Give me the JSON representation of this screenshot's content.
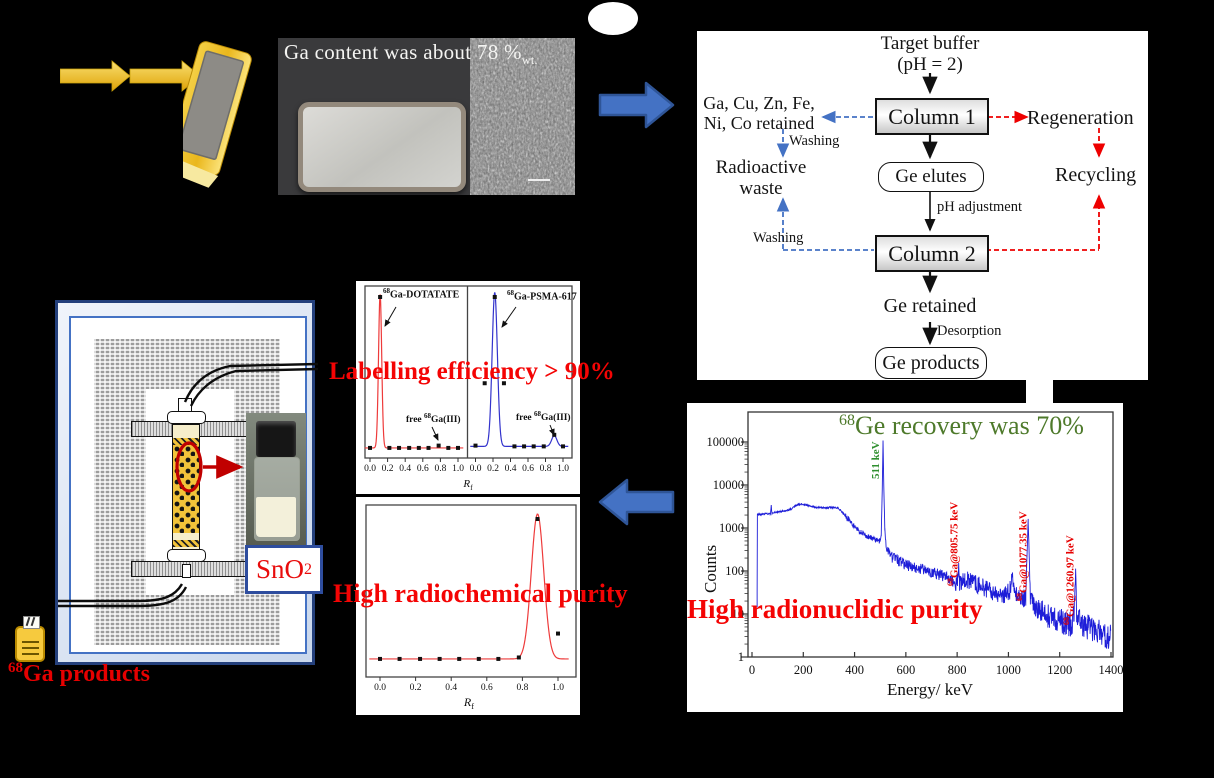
{
  "photo": {
    "caption": "Ga content was about 78 %",
    "caption_sub": "wt."
  },
  "flowchart": {
    "target_buffer_1": "Target buffer",
    "target_buffer_2": "(pH = 2)",
    "column1": "Column 1",
    "column2": "Column 2",
    "retained_1": "Ga, Cu, Zn, Fe,",
    "retained_2": "Ni, Co retained",
    "washing1": "Washing",
    "washing2": "Washing",
    "radioactive_waste_1": "Radioactive",
    "radioactive_waste_2": "waste",
    "regeneration": "Regeneration",
    "recycling": "Recycling",
    "ge_elutes": "Ge elutes",
    "ph_adjustment": "pH adjustment",
    "ge_retained": "Ge retained",
    "desorption": "Desorption",
    "ge_products": "Ge products"
  },
  "generator": {
    "sno2_main": "SnO",
    "sno2_sub": "2",
    "products_sup": "68",
    "products_text": "Ga products"
  },
  "overlays": {
    "labelling": "Labelling efficiency > 90%",
    "radiochemical": "High radiochemical purity",
    "radionuclidic": "High radionuclidic purity"
  },
  "colors": {
    "accent_blue": "#4472c4",
    "arrow_border_blue": "#2f5597",
    "flow_red": "#ee0000",
    "overlay_red": "#f40404",
    "title_green": "#4e7a2b",
    "peak_label_green": "#2f8f2f",
    "tlc_red": "#ee3b3b",
    "tlc_blue": "#3333cc",
    "spectrum_blue": "#1d1dd8",
    "gold": "#e8b62a",
    "generator_red": "#c00000"
  },
  "chart_data": [
    {
      "type": "line",
      "desc": "radio-TLC chromatograms of labelled tracers",
      "xlabel_main": "R",
      "xlabel_sub": "f",
      "x_ticks": [
        "0.0",
        "0.2",
        "0.4",
        "0.6",
        "0.8",
        "1.0"
      ],
      "xlim": [
        0.0,
        1.0
      ],
      "panels": [
        {
          "label_sup": "68",
          "label_text": "Ga-DOTATATE",
          "free_pre": "free ",
          "free_sup": "68",
          "free_text": "Ga(III)",
          "color": "#ee3b3b",
          "baseline": 0.02,
          "peaks": [
            {
              "center": 0.115,
              "sigma": 0.018,
              "height": 1.0
            }
          ],
          "free_peak_rf": 0.78,
          "markers": [
            [
              0.0,
              0.02
            ],
            [
              0.115,
              1.0
            ],
            [
              0.22,
              0.02
            ],
            [
              0.33,
              0.02
            ],
            [
              0.445,
              0.02
            ],
            [
              0.555,
              0.02
            ],
            [
              0.665,
              0.02
            ],
            [
              0.78,
              0.035
            ],
            [
              0.89,
              0.02
            ],
            [
              1.0,
              0.02
            ]
          ]
        },
        {
          "label_sup": "68",
          "label_text": "Ga-PSMA-617",
          "free_pre": "free ",
          "free_sup": "68",
          "free_text": "Ga(III)",
          "color": "#3333cc",
          "baseline": 0.03,
          "peaks": [
            {
              "center": 0.22,
              "sigma": 0.03,
              "height": 1.0
            },
            {
              "center": 0.9,
              "sigma": 0.03,
              "height": 0.07
            }
          ],
          "free_peak_rf": 0.9,
          "markers": [
            [
              0.0,
              0.035
            ],
            [
              0.105,
              0.44
            ],
            [
              0.22,
              1.0
            ],
            [
              0.325,
              0.44
            ],
            [
              0.445,
              0.03
            ],
            [
              0.555,
              0.03
            ],
            [
              0.665,
              0.03
            ],
            [
              0.78,
              0.03
            ],
            [
              0.9,
              0.105
            ],
            [
              1.0,
              0.03
            ]
          ]
        }
      ]
    },
    {
      "type": "line",
      "desc": "radio-TLC of final 68Ga product",
      "xlabel_main": "R",
      "xlabel_sub": "f",
      "x_ticks": [
        "0.0",
        "0.2",
        "0.4",
        "0.6",
        "0.8",
        "1.0"
      ],
      "xlim": [
        0.0,
        1.0
      ],
      "color": "#ee3b3b",
      "baseline": 0.035,
      "peaks": [
        {
          "center": 0.885,
          "sigma": 0.035,
          "height": 1.0
        }
      ],
      "markers": [
        [
          0.0,
          0.035
        ],
        [
          0.11,
          0.035
        ],
        [
          0.225,
          0.035
        ],
        [
          0.335,
          0.035
        ],
        [
          0.445,
          0.035
        ],
        [
          0.555,
          0.035
        ],
        [
          0.665,
          0.035
        ],
        [
          0.78,
          0.045
        ],
        [
          0.885,
          1.0
        ],
        [
          1.0,
          0.21
        ]
      ]
    },
    {
      "type": "line",
      "desc": "gamma-ray spectrum",
      "title_sup": "68",
      "title_text": "Ge recovery was 70%",
      "xlabel": "Energy/ keV",
      "ylabel": "Counts",
      "yscale": "log",
      "xlim": [
        0,
        1400
      ],
      "ylim": [
        1,
        500000
      ],
      "x_ticks": [
        0,
        200,
        400,
        600,
        800,
        1000,
        1200,
        1400
      ],
      "y_ticks": [
        1,
        10,
        100,
        1000,
        10000,
        100000
      ],
      "color": "#1d1dd8",
      "annotations": [
        {
          "sup": "",
          "text": "511 keV",
          "energy": 511,
          "base_counts": 14000,
          "color": "#2f8f2f"
        },
        {
          "sup": "68",
          "text": "Ga@805.75 keV",
          "energy": 805.75,
          "base_counts": 45,
          "color": "#e60000"
        },
        {
          "sup": "68",
          "text": "Ga@1077.35 keV",
          "energy": 1077.35,
          "base_counts": 20,
          "color": "#e60000"
        },
        {
          "sup": "68",
          "text": "Ga@1260.97 keV",
          "energy": 1260.97,
          "base_counts": 5.5,
          "color": "#e60000"
        }
      ],
      "points": [
        [
          20,
          22
        ],
        [
          21,
          2100
        ],
        [
          35,
          2050
        ],
        [
          55,
          2150
        ],
        [
          72,
          2100
        ],
        [
          75,
          3300
        ],
        [
          78,
          2150
        ],
        [
          95,
          2350
        ],
        [
          120,
          2450
        ],
        [
          150,
          2700
        ],
        [
          175,
          3500
        ],
        [
          195,
          3600
        ],
        [
          215,
          3350
        ],
        [
          250,
          3000
        ],
        [
          285,
          2950
        ],
        [
          320,
          3050
        ],
        [
          335,
          2950
        ],
        [
          345,
          2600
        ],
        [
          365,
          1900
        ],
        [
          395,
          1150
        ],
        [
          425,
          780
        ],
        [
          455,
          620
        ],
        [
          480,
          530
        ],
        [
          497,
          500
        ],
        [
          504,
          700
        ],
        [
          508,
          8000
        ],
        [
          511,
          105000
        ],
        [
          514,
          9000
        ],
        [
          518,
          900
        ],
        [
          524,
          330
        ],
        [
          535,
          240
        ],
        [
          550,
          200
        ],
        [
          575,
          165
        ],
        [
          600,
          140
        ],
        [
          640,
          115
        ],
        [
          680,
          105
        ],
        [
          710,
          90
        ],
        [
          740,
          80
        ],
        [
          770,
          65
        ],
        [
          795,
          55
        ],
        [
          803,
          60
        ],
        [
          806,
          130
        ],
        [
          809,
          55
        ],
        [
          830,
          60
        ],
        [
          860,
          60
        ],
        [
          875,
          50
        ],
        [
          900,
          42
        ],
        [
          930,
          34
        ],
        [
          960,
          30
        ],
        [
          990,
          28
        ],
        [
          1005,
          35
        ],
        [
          1015,
          80
        ],
        [
          1022,
          40
        ],
        [
          1035,
          26
        ],
        [
          1055,
          22
        ],
        [
          1068,
          25
        ],
        [
          1073,
          300
        ],
        [
          1077,
          1500
        ],
        [
          1081,
          250
        ],
        [
          1086,
          22
        ],
        [
          1100,
          16
        ],
        [
          1130,
          11
        ],
        [
          1160,
          9
        ],
        [
          1200,
          7
        ],
        [
          1230,
          6
        ],
        [
          1250,
          6
        ],
        [
          1258,
          14
        ],
        [
          1262,
          95
        ],
        [
          1266,
          12
        ],
        [
          1285,
          6
        ],
        [
          1310,
          5
        ],
        [
          1345,
          4
        ],
        [
          1380,
          3.2
        ],
        [
          1400,
          3
        ]
      ]
    }
  ]
}
